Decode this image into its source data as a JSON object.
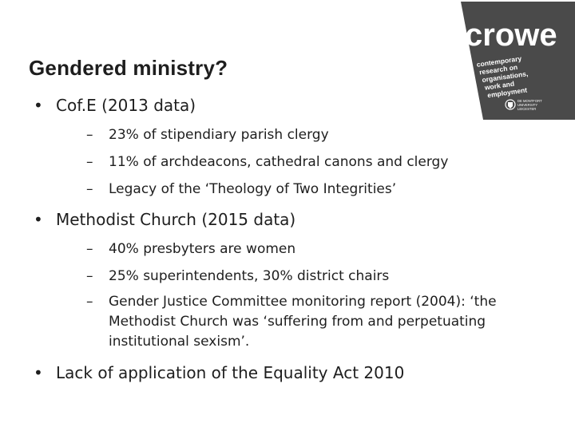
{
  "slide": {
    "title": "Gendered ministry?"
  },
  "logo": {
    "word": "crowe",
    "tagline": [
      "contemporary",
      "research on",
      "organisations,",
      "work and",
      "employment"
    ],
    "university": [
      "DE MONTFORT",
      "UNIVERSITY",
      "LEICESTER"
    ]
  },
  "bullets": [
    {
      "text": "Cof.E (2013 data)",
      "sub": [
        "23% of stipendiary parish clergy",
        "11% of archdeacons, cathedral canons and clergy",
        "Legacy of the ‘Theology of Two Integrities’"
      ]
    },
    {
      "text": "Methodist Church (2015 data)",
      "sub": [
        "40% presbyters are women",
        "25% superintendents, 30% district chairs",
        "Gender Justice Committee monitoring report  (2004): ‘the Methodist Church was ‘suffering from and perpetuating institutional sexism’."
      ]
    },
    {
      "text": "Lack of application of the Equality Act 2010",
      "sub": []
    }
  ],
  "glyphs": {
    "bullet": "•",
    "dash": "–"
  }
}
